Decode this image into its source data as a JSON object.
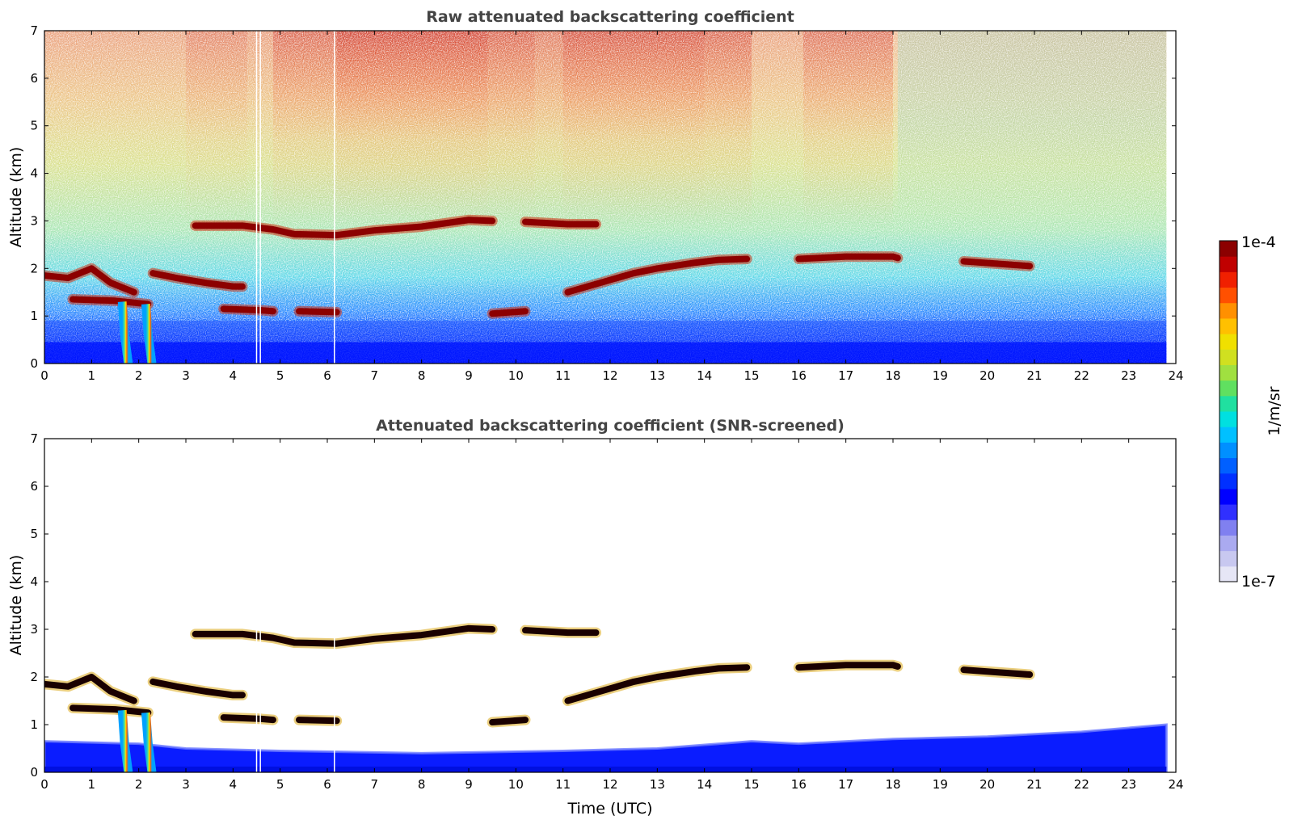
{
  "chart_data": [
    {
      "type": "heatmap",
      "title": "Raw attenuated backscattering coefficient",
      "xlabel": "",
      "ylabel": "Altitude (km)",
      "xlim": [
        0,
        24
      ],
      "ylim": [
        0,
        7
      ],
      "x_ticks": [
        "0",
        "1",
        "2",
        "3",
        "4",
        "5",
        "6",
        "7",
        "8",
        "9",
        "10",
        "11",
        "12",
        "13",
        "14",
        "15",
        "16",
        "17",
        "18",
        "19",
        "20",
        "21",
        "22",
        "23",
        "24"
      ],
      "y_ticks": [
        "0",
        "1",
        "2",
        "3",
        "4",
        "5",
        "6",
        "7"
      ],
      "data_end_hour": 23.8,
      "features": [
        {
          "kind": "cloud_layer",
          "points": [
            [
              3.2,
              2.9
            ],
            [
              4.2,
              2.9
            ],
            [
              4.85,
              2.82
            ],
            [
              5.3,
              2.72
            ],
            [
              6.2,
              2.7
            ],
            [
              7.0,
              2.8
            ],
            [
              8.0,
              2.88
            ],
            [
              9.0,
              3.02
            ],
            [
              9.5,
              3.0
            ]
          ]
        },
        {
          "kind": "cloud_layer",
          "points": [
            [
              10.2,
              2.98
            ],
            [
              11.1,
              2.93
            ],
            [
              11.5,
              2.93
            ],
            [
              11.7,
              2.93
            ]
          ]
        },
        {
          "kind": "cloud_layer",
          "points": [
            [
              0.0,
              1.85
            ],
            [
              0.5,
              1.8
            ],
            [
              1.0,
              2.0
            ],
            [
              1.4,
              1.7
            ],
            [
              1.9,
              1.5
            ]
          ]
        },
        {
          "kind": "cloud_layer",
          "points": [
            [
              0.6,
              1.35
            ],
            [
              1.5,
              1.32
            ],
            [
              2.2,
              1.25
            ]
          ]
        },
        {
          "kind": "cloud_layer",
          "points": [
            [
              2.3,
              1.9
            ],
            [
              2.8,
              1.8
            ],
            [
              3.4,
              1.7
            ],
            [
              4.0,
              1.62
            ],
            [
              4.2,
              1.62
            ]
          ]
        },
        {
          "kind": "cloud_layer",
          "points": [
            [
              3.8,
              1.15
            ],
            [
              4.6,
              1.12
            ],
            [
              4.85,
              1.1
            ]
          ]
        },
        {
          "kind": "cloud_layer",
          "points": [
            [
              5.4,
              1.1
            ],
            [
              6.2,
              1.08
            ]
          ]
        },
        {
          "kind": "cloud_layer",
          "points": [
            [
              9.5,
              1.05
            ],
            [
              10.2,
              1.1
            ]
          ]
        },
        {
          "kind": "cloud_layer",
          "points": [
            [
              11.1,
              1.5
            ],
            [
              11.8,
              1.7
            ],
            [
              12.5,
              1.9
            ],
            [
              13.0,
              2.0
            ],
            [
              13.8,
              2.12
            ],
            [
              14.3,
              2.18
            ],
            [
              14.9,
              2.2
            ]
          ]
        },
        {
          "kind": "cloud_layer",
          "points": [
            [
              16.0,
              2.2
            ],
            [
              17.0,
              2.25
            ],
            [
              18.0,
              2.25
            ],
            [
              18.1,
              2.22
            ]
          ]
        },
        {
          "kind": "cloud_layer",
          "points": [
            [
              19.5,
              2.15
            ],
            [
              20.2,
              2.1
            ],
            [
              20.9,
              2.05
            ]
          ]
        },
        {
          "kind": "plume",
          "points": [
            [
              1.65,
              1.3
            ],
            [
              1.7,
              0.6
            ],
            [
              1.78,
              0.0
            ]
          ]
        },
        {
          "kind": "plume",
          "points": [
            [
              2.15,
              1.25
            ],
            [
              2.2,
              0.6
            ],
            [
              2.28,
              0.0
            ]
          ]
        }
      ]
    },
    {
      "type": "heatmap",
      "title": "Attenuated backscattering coefficient (SNR-screened)",
      "xlabel": "Time (UTC)",
      "ylabel": "Altitude (km)",
      "xlim": [
        0,
        24
      ],
      "ylim": [
        0,
        7
      ],
      "x_ticks": [
        "0",
        "1",
        "2",
        "3",
        "4",
        "5",
        "6",
        "7",
        "8",
        "9",
        "10",
        "11",
        "12",
        "13",
        "14",
        "15",
        "16",
        "17",
        "18",
        "19",
        "20",
        "21",
        "22",
        "23",
        "24"
      ],
      "y_ticks": [
        "0",
        "1",
        "2",
        "3",
        "4",
        "5",
        "6",
        "7"
      ],
      "data_end_hour": 23.8,
      "boundary_layer_top_km": [
        [
          0,
          0.65
        ],
        [
          2,
          0.6
        ],
        [
          3,
          0.5
        ],
        [
          5,
          0.45
        ],
        [
          8,
          0.4
        ],
        [
          11,
          0.45
        ],
        [
          13,
          0.5
        ],
        [
          15,
          0.65
        ],
        [
          16,
          0.6
        ],
        [
          18,
          0.7
        ],
        [
          20,
          0.75
        ],
        [
          22,
          0.85
        ],
        [
          23.8,
          1.0
        ]
      ]
    }
  ],
  "colorbar": {
    "label": "1/m/sr",
    "max_label": "1e-4",
    "min_label": "1e-7",
    "colors": [
      "#e6e6f6",
      "#c8c8f0",
      "#aaaaf0",
      "#8080f0",
      "#3030ff",
      "#0000ff",
      "#0030ff",
      "#0060ff",
      "#0090ff",
      "#00c0ff",
      "#00e0e0",
      "#20e0a0",
      "#60e060",
      "#a0e040",
      "#d0e020",
      "#f0e000",
      "#ffc000",
      "#ff9000",
      "#ff5000",
      "#f02000",
      "#c00000",
      "#8c0000"
    ]
  }
}
